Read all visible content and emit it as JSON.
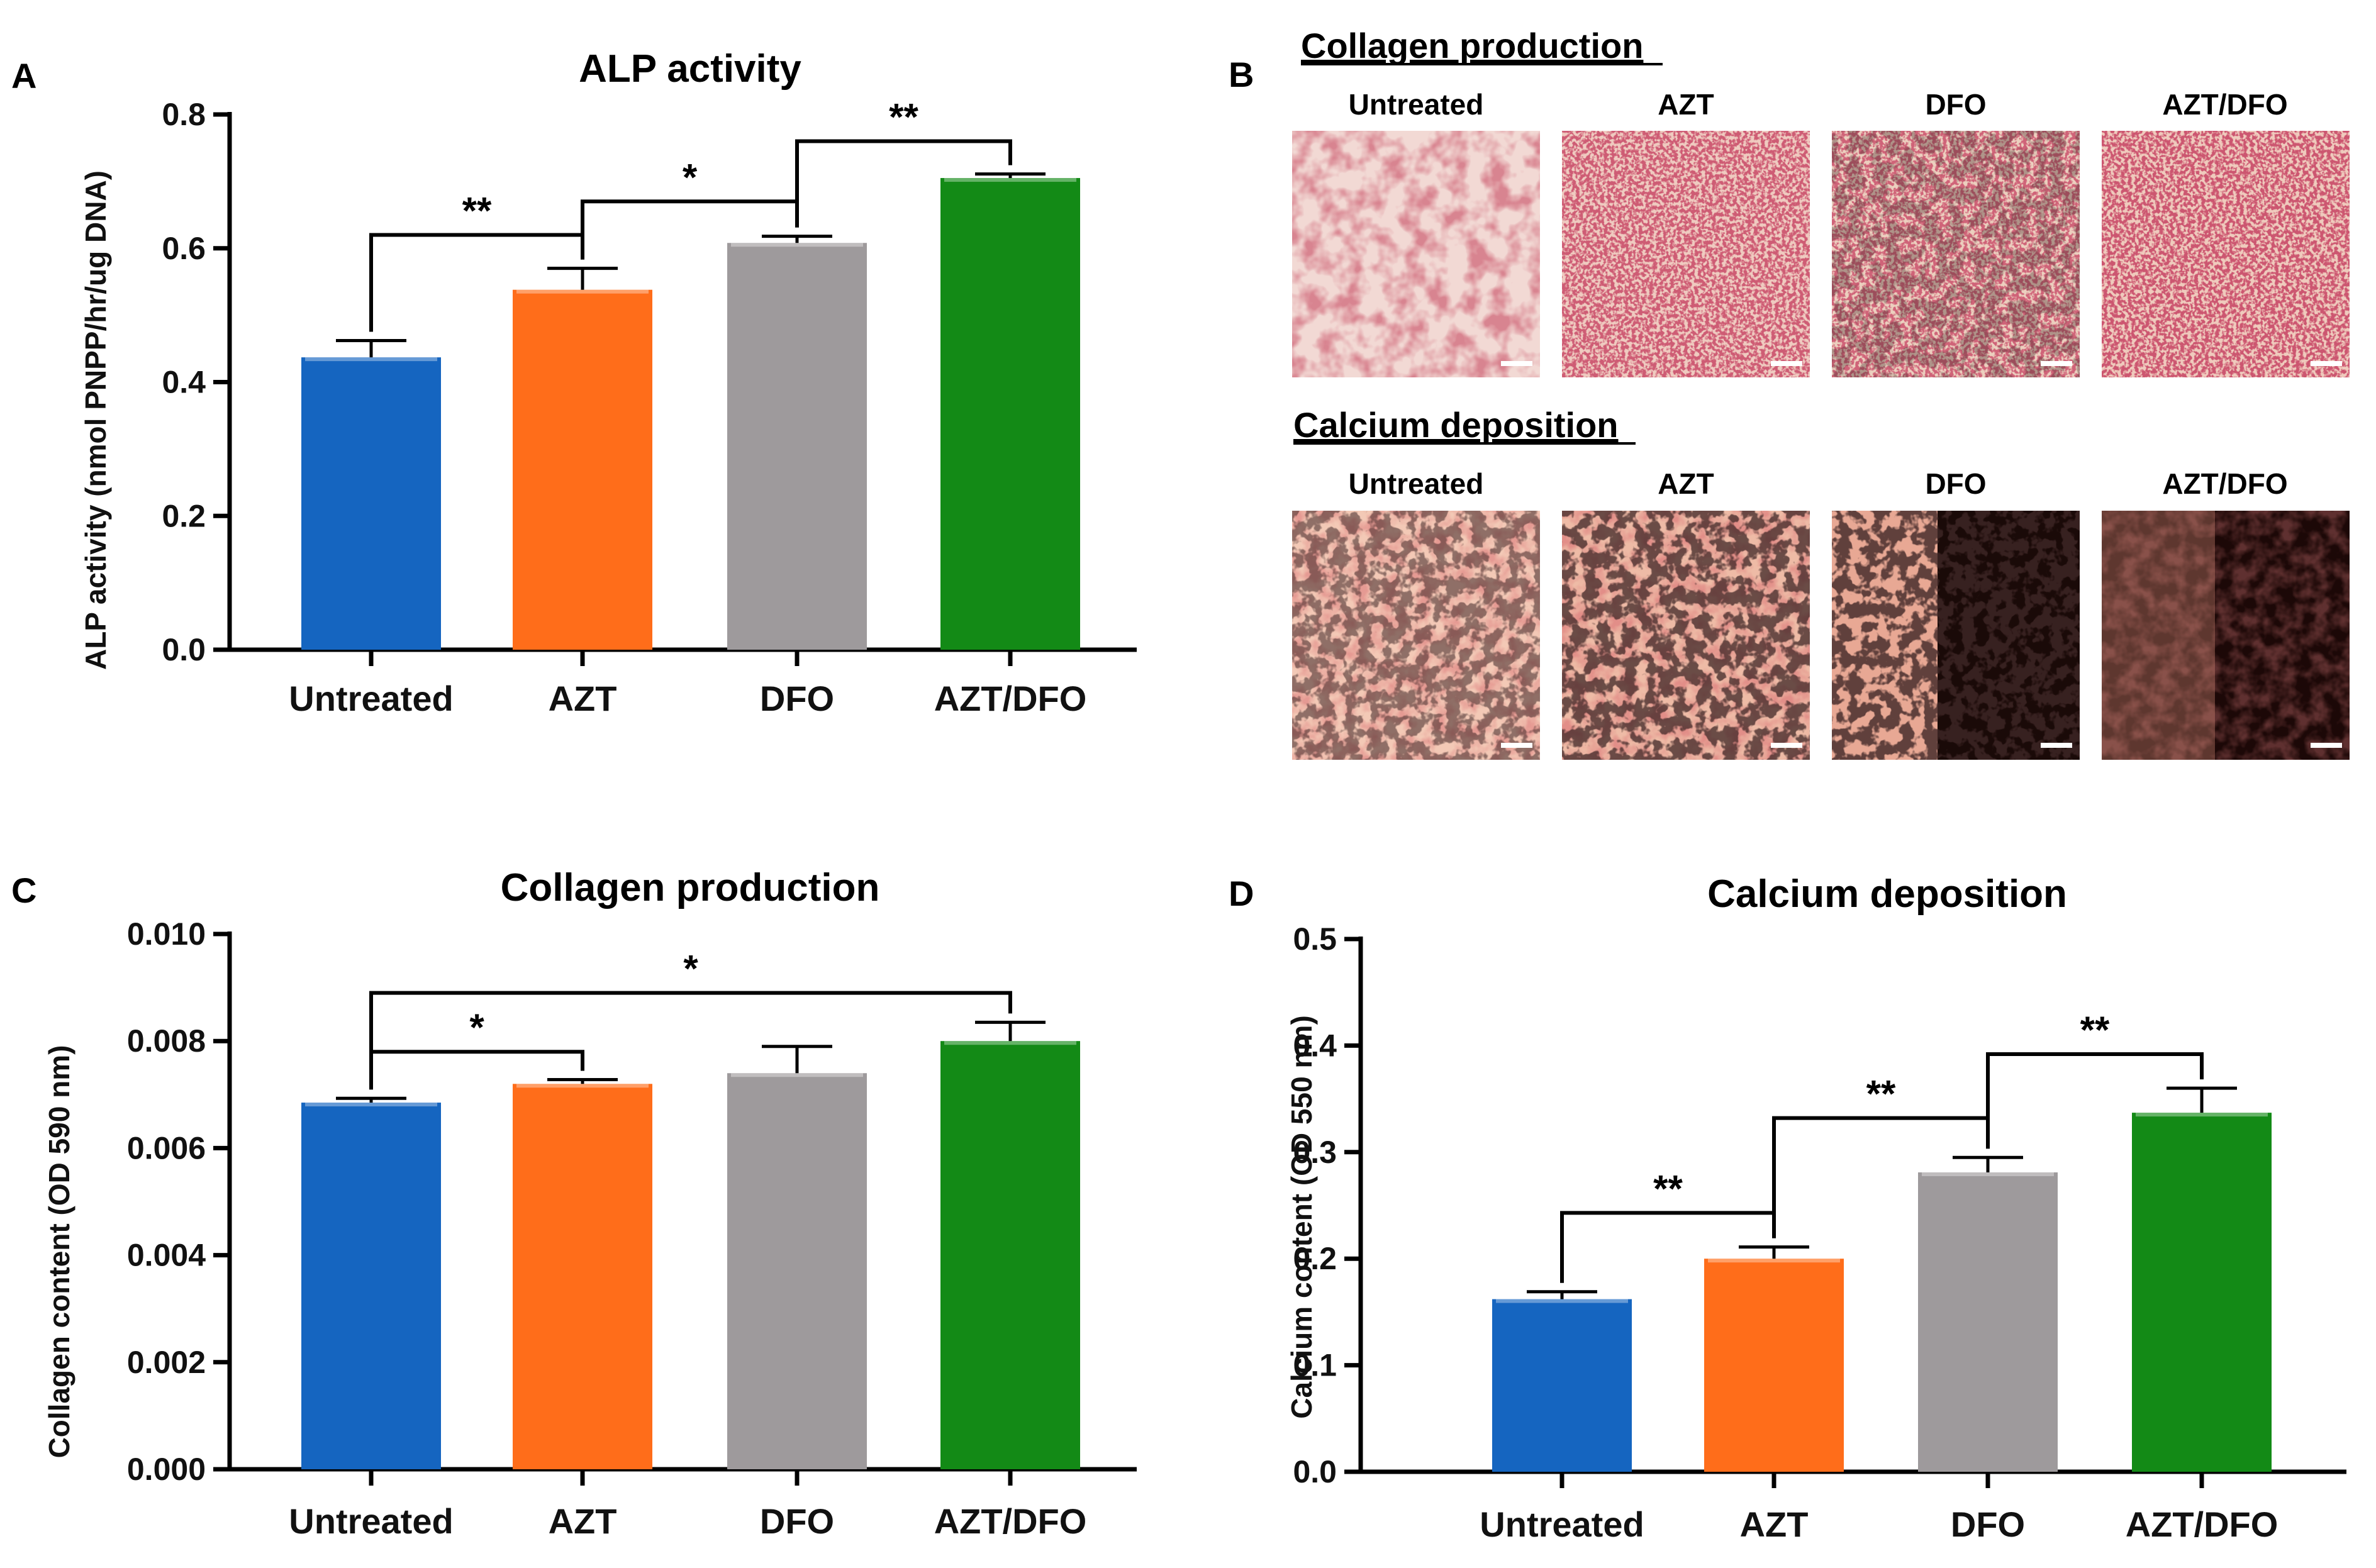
{
  "chart_data": [
    {
      "panel": "A",
      "type": "bar",
      "title": "ALP activity",
      "ylabel": "ALP activity (nmol PNPP/hr/ug DNA)",
      "xlabel": "",
      "categories": [
        "Untreated",
        "AZT",
        "DFO",
        "AZT/DFO"
      ],
      "values": [
        0.437,
        0.538,
        0.608,
        0.705
      ],
      "errors": [
        0.025,
        0.032,
        0.01,
        0.006
      ],
      "colors": [
        "#1565c0",
        "#ff6d1a",
        "#9e9a9c",
        "#138a16"
      ],
      "ylim": [
        0,
        0.8
      ],
      "yticks": [
        0.0,
        0.2,
        0.4,
        0.6,
        0.8
      ],
      "ytick_labels": [
        "0.0",
        "0.2",
        "0.4",
        "0.6",
        "0.8"
      ],
      "significance": [
        {
          "from": 0,
          "to": 1,
          "label": "**",
          "y": 0.62
        },
        {
          "from": 1,
          "to": 2,
          "label": "*",
          "y": 0.67
        },
        {
          "from": 2,
          "to": 3,
          "label": "**",
          "y": 0.76
        }
      ]
    },
    {
      "panel": "C",
      "type": "bar",
      "title": "Collagen production",
      "ylabel": "Collagen content (OD 590 nm)",
      "xlabel": "",
      "categories": [
        "Untreated",
        "AZT",
        "DFO",
        "AZT/DFO"
      ],
      "values": [
        0.00685,
        0.0072,
        0.0074,
        0.008
      ],
      "errors": [
        8e-05,
        8e-05,
        0.0005,
        0.00035
      ],
      "colors": [
        "#1565c0",
        "#ff6d1a",
        "#9e9a9c",
        "#138a16"
      ],
      "ylim": [
        0,
        0.01
      ],
      "yticks": [
        0.0,
        0.002,
        0.004,
        0.006,
        0.008,
        0.01
      ],
      "ytick_labels": [
        "0.000",
        "0.002",
        "0.004",
        "0.006",
        "0.008",
        "0.010"
      ],
      "significance": [
        {
          "from": 0,
          "to": 1,
          "label": "*",
          "y": 0.0078
        },
        {
          "from": 0,
          "to": 3,
          "label": "*",
          "y": 0.0089
        }
      ]
    },
    {
      "panel": "D",
      "type": "bar",
      "title": "Calcium deposition",
      "ylabel": "Calcium content (OD 550 nm)",
      "xlabel": "",
      "categories": [
        "Untreated",
        "AZT",
        "DFO",
        "AZT/DFO"
      ],
      "values": [
        0.162,
        0.2,
        0.281,
        0.337
      ],
      "errors": [
        0.007,
        0.011,
        0.014,
        0.023
      ],
      "colors": [
        "#1565c0",
        "#ff6d1a",
        "#9e9a9c",
        "#138a16"
      ],
      "ylim": [
        0,
        0.5
      ],
      "yticks": [
        0.0,
        0.1,
        0.2,
        0.3,
        0.4,
        0.5
      ],
      "ytick_labels": [
        "0.0",
        "0.1",
        "0.2",
        "0.3",
        "0.4",
        "0.5"
      ],
      "significance": [
        {
          "from": 0,
          "to": 1,
          "label": "**",
          "y": 0.243
        },
        {
          "from": 1,
          "to": 2,
          "label": "**",
          "y": 0.332
        },
        {
          "from": 2,
          "to": 3,
          "label": "**",
          "y": 0.392
        }
      ]
    }
  ],
  "panel_b": {
    "letter": "B",
    "sections": [
      {
        "title": "Collagen production",
        "labels": [
          "Untreated",
          "AZT",
          "DFO",
          "AZT/DFO"
        ]
      },
      {
        "title": "Calcium deposition",
        "labels": [
          "Untreated",
          "AZT",
          "DFO",
          "AZT/DFO"
        ]
      }
    ]
  }
}
